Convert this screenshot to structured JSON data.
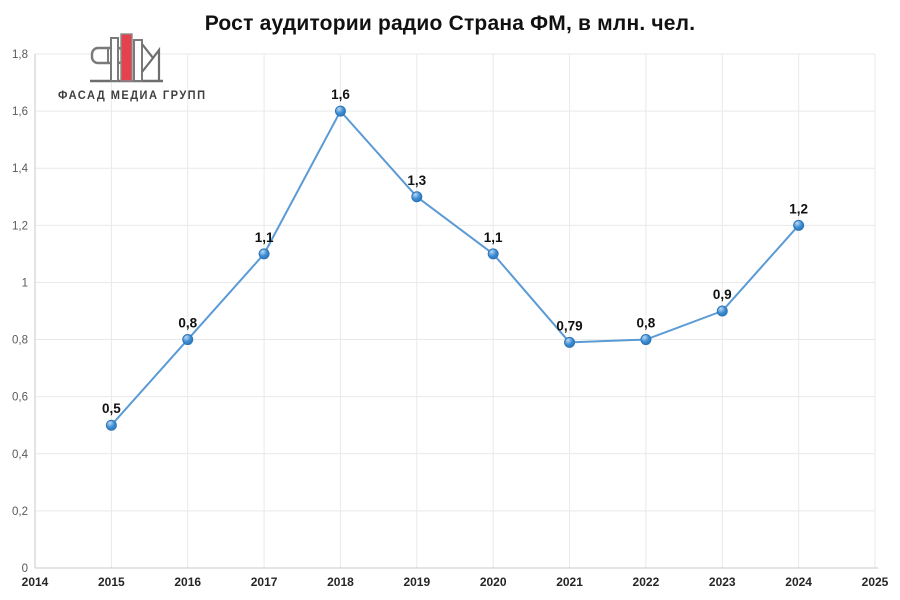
{
  "logo": {
    "text": "ФАСАД МЕДИА ГРУПП"
  },
  "title": "Рост аудитории радио Страна ФМ, в млн. чел.",
  "chart_data": {
    "type": "line",
    "title": "Рост аудитории радио Страна ФМ, в млн. чел.",
    "x": [
      2015,
      2016,
      2017,
      2018,
      2019,
      2020,
      2021,
      2022,
      2023,
      2024
    ],
    "values": [
      0.5,
      0.8,
      1.1,
      1.6,
      1.3,
      1.1,
      0.79,
      0.8,
      0.9,
      1.2
    ],
    "point_labels": [
      "0,5",
      "0,8",
      "1,1",
      "1,6",
      "1,3",
      "1,1",
      "0,79",
      "0,8",
      "0,9",
      "1,2"
    ],
    "xlabel": "",
    "ylabel": "",
    "xlim": [
      2014,
      2025
    ],
    "x_ticks": [
      "2014",
      "2015",
      "2016",
      "2017",
      "2018",
      "2019",
      "2020",
      "2021",
      "2022",
      "2023",
      "2024",
      "2025"
    ],
    "ylim": [
      0,
      1.8
    ],
    "y_ticks": [
      {
        "value": 0,
        "label": "0"
      },
      {
        "value": 0.2,
        "label": "0,2"
      },
      {
        "value": 0.4,
        "label": "0,4"
      },
      {
        "value": 0.6,
        "label": "0,6"
      },
      {
        "value": 0.8,
        "label": "0,8"
      },
      {
        "value": 1.0,
        "label": "1"
      },
      {
        "value": 1.2,
        "label": "1,2"
      },
      {
        "value": 1.4,
        "label": "1,4"
      },
      {
        "value": 1.6,
        "label": "1,6"
      },
      {
        "value": 1.8,
        "label": "1,8"
      }
    ],
    "grid": true,
    "legend": "none",
    "colors": {
      "line": "#5B9BD5",
      "marker_fill": "#3C8DD4",
      "marker_highlight": "#BBD9F3",
      "marker_stroke": "#2E75B6",
      "point_label": "#111111",
      "y_axis_text": "#595959",
      "x_axis_text": "#262626",
      "grid": "#e9e9e9",
      "axis_line": "#c9c9c9"
    },
    "logo_red": "#E4424D",
    "logo_gray": "#6E6E6E"
  }
}
